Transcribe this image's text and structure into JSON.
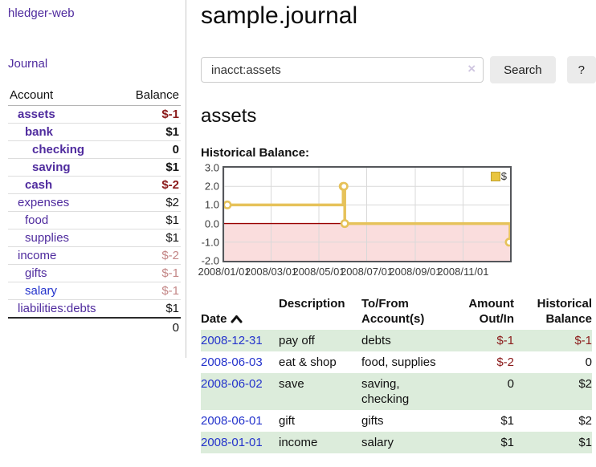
{
  "app": {
    "title_link": "hledger-web"
  },
  "sidebar": {
    "journal_link": "Journal",
    "headers": {
      "account": "Account",
      "balance": "Balance"
    },
    "accounts": [
      {
        "name": "assets",
        "depth": 0,
        "bold": true,
        "balance": "$-1",
        "bal_class": "neg-strong"
      },
      {
        "name": "bank",
        "depth": 1,
        "bold": true,
        "balance": "$1",
        "bal_class": ""
      },
      {
        "name": "checking",
        "depth": 2,
        "bold": true,
        "balance": "0",
        "bal_class": ""
      },
      {
        "name": "saving",
        "depth": 2,
        "bold": true,
        "balance": "$1",
        "bal_class": ""
      },
      {
        "name": "cash",
        "depth": 1,
        "bold": true,
        "balance": "$-2",
        "bal_class": "neg-strong"
      },
      {
        "name": "expenses",
        "depth": 0,
        "bold": false,
        "balance": "$2",
        "bal_class": ""
      },
      {
        "name": "food",
        "depth": 1,
        "bold": false,
        "balance": "$1",
        "bal_class": ""
      },
      {
        "name": "supplies",
        "depth": 1,
        "bold": false,
        "balance": "$1",
        "bal_class": ""
      },
      {
        "name": "income",
        "depth": 0,
        "bold": false,
        "balance": "$-2",
        "bal_class": "neg-soft"
      },
      {
        "name": "gifts",
        "depth": 1,
        "bold": false,
        "balance": "$-1",
        "bal_class": "neg-soft"
      },
      {
        "name": "salary",
        "depth": 1,
        "bold": false,
        "balance": "$-1",
        "bal_class": "neg-soft",
        "link_color": "blue"
      },
      {
        "name": "liabilities:debts",
        "depth": 0,
        "bold": false,
        "balance": "$1",
        "bal_class": ""
      }
    ],
    "total": "0"
  },
  "main": {
    "title": "sample.journal",
    "search": {
      "value": "inacct:assets",
      "clear_icon": "×",
      "button_label": "Search",
      "help_label": "?"
    },
    "account_heading": "assets",
    "chart_heading": "Historical Balance:",
    "register": {
      "headers": {
        "date": "Date",
        "description": "Description",
        "to_from": "To/From\nAccount(s)",
        "amount": "Amount\nOut/In",
        "historical": "Historical\nBalance"
      },
      "rows": [
        {
          "date": "2008-12-31",
          "description": "pay off",
          "accounts": "debts",
          "amount": "$-1",
          "amount_class": "neg",
          "historical": "$-1",
          "historical_class": "neg",
          "shaded": true
        },
        {
          "date": "2008-06-03",
          "description": "eat & shop",
          "accounts": "food, supplies",
          "amount": "$-2",
          "amount_class": "neg",
          "historical": "0",
          "historical_class": "",
          "shaded": false
        },
        {
          "date": "2008-06-02",
          "description": "save",
          "accounts": "saving,\nchecking",
          "amount": "0",
          "amount_class": "",
          "historical": "$2",
          "historical_class": "",
          "shaded": true
        },
        {
          "date": "2008-06-01",
          "description": "gift",
          "accounts": "gifts",
          "amount": "$1",
          "amount_class": "",
          "historical": "$2",
          "historical_class": "",
          "shaded": false
        },
        {
          "date": "2008-01-01",
          "description": "income",
          "accounts": "salary",
          "amount": "$1",
          "amount_class": "",
          "historical": "$1",
          "historical_class": "",
          "shaded": true
        }
      ]
    }
  },
  "chart_data": {
    "type": "line",
    "step": true,
    "title": "Historical Balance:",
    "legend_label": "$",
    "legend_position": "top-right",
    "x_range": [
      "2008/01/01",
      "2008/12/31"
    ],
    "ylim": [
      -2,
      3
    ],
    "yticks": [
      "3.0",
      "2.0",
      "1.0",
      "0.0",
      "-1.0",
      "-2.0"
    ],
    "xticks": [
      "2008/01/01",
      "2008/03/01",
      "2008/05/01",
      "2008/07/01",
      "2008/09/01",
      "2008/11/01"
    ],
    "series": [
      {
        "name": "$",
        "points": [
          {
            "x": "2008/01/01",
            "y": 1
          },
          {
            "x": "2008/06/01",
            "y": 2
          },
          {
            "x": "2008/06/02",
            "y": 2
          },
          {
            "x": "2008/06/03",
            "y": 0
          },
          {
            "x": "2008/12/31",
            "y": -1
          }
        ]
      }
    ],
    "grid": "both",
    "negative_region": true
  },
  "colors": {
    "accent_purple": "#4f2b9e",
    "link_blue": "#2433cc",
    "negative_strong": "#8b1a1a",
    "negative_soft": "#c38686",
    "stripe_green": "#dcecdb",
    "chart_gold": "#e6c25a",
    "chart_gold_fill": "#e9c53f",
    "chart_negative_fill": "#fadddd",
    "chart_zero_line": "#990000",
    "plot_border": "#54565a"
  }
}
